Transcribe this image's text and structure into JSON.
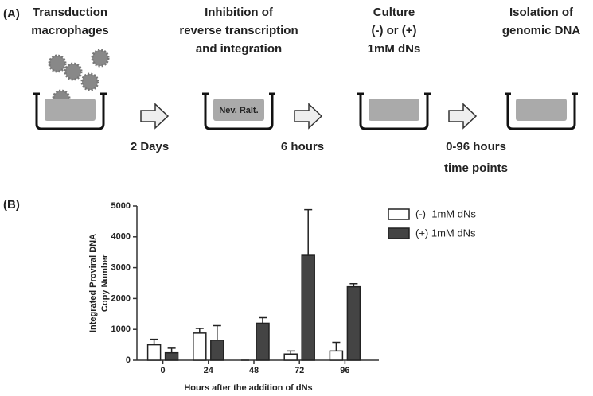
{
  "panel_a": {
    "label": "(A)",
    "steps": [
      {
        "title_lines": [
          "Transduction",
          "macrophages"
        ]
      },
      {
        "title_lines": [
          "Inhibition of",
          "reverse transcription",
          "and integration"
        ],
        "dish_label": "Nev. Ralt."
      },
      {
        "title_lines": [
          "Culture",
          "(-) or (+)",
          "1mM dNs"
        ]
      },
      {
        "title_lines": [
          "Isolation of",
          "genomic DNA"
        ]
      }
    ],
    "transitions": [
      [
        "2 Days"
      ],
      [
        "6 hours"
      ],
      [
        "0-96 hours",
        "time points"
      ]
    ]
  },
  "chart_data": {
    "type": "bar",
    "panel_label": "(B)",
    "y_label_lines": [
      "Integrated Proviral DNA",
      "Copy Number"
    ],
    "x_label": "Hours after the addition of dNs",
    "categories": [
      "0",
      "24",
      "48",
      "72",
      "96"
    ],
    "series": [
      {
        "name": "(-)  1mM dNs",
        "color": "#ffffff",
        "values": [
          500,
          880,
          0,
          200,
          300
        ],
        "errors": [
          180,
          150,
          0,
          100,
          280
        ]
      },
      {
        "name": "(+) 1mM dNs",
        "color": "#444444",
        "values": [
          240,
          650,
          1200,
          3400,
          2380
        ],
        "errors": [
          150,
          470,
          180,
          1480,
          100
        ]
      }
    ],
    "ylim": [
      0,
      5000
    ],
    "yticks": [
      0,
      1000,
      2000,
      3000,
      4000,
      5000
    ],
    "legend": "upper right"
  }
}
